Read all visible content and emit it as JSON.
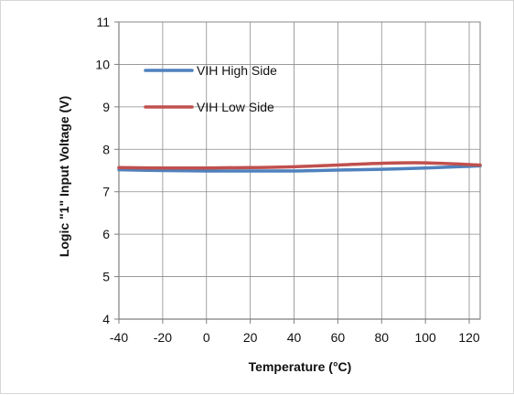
{
  "chart_data": {
    "type": "line",
    "title": "",
    "xlabel": "Temperature (°C)",
    "ylabel": "Logic \"1\" Input Voltage (V)",
    "xlim": [
      -40,
      125
    ],
    "ylim": [
      4,
      11
    ],
    "xticks": [
      -40,
      -20,
      0,
      20,
      40,
      60,
      80,
      100,
      120
    ],
    "yticks": [
      4,
      5,
      6,
      7,
      8,
      9,
      10,
      11
    ],
    "grid": true,
    "legend_position": "top-left",
    "series": [
      {
        "name": "VIH High Side",
        "color": "#4f81bd",
        "x": [
          -40,
          -20,
          0,
          20,
          40,
          60,
          80,
          100,
          125
        ],
        "y": [
          7.52,
          7.5,
          7.49,
          7.49,
          7.49,
          7.51,
          7.53,
          7.56,
          7.61
        ]
      },
      {
        "name": "VIH Low Side",
        "color": "#c0504d",
        "x": [
          -40,
          -20,
          0,
          20,
          40,
          60,
          80,
          100,
          125
        ],
        "y": [
          7.57,
          7.56,
          7.56,
          7.57,
          7.59,
          7.63,
          7.67,
          7.68,
          7.63
        ]
      }
    ]
  }
}
